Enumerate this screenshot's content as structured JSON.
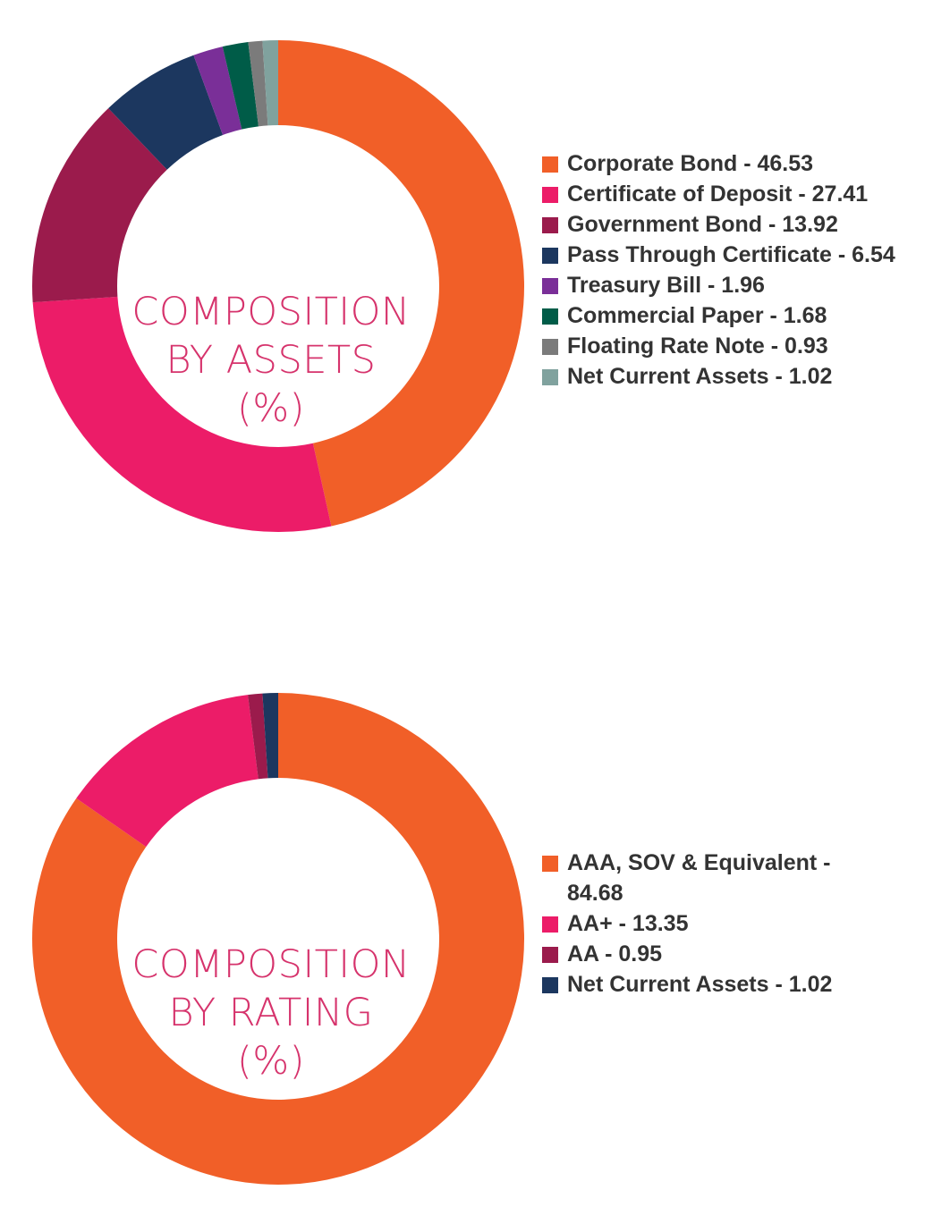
{
  "chart_data": [
    {
      "type": "pie",
      "center_label": [
        "COMPOSITION",
        "BY ASSETS",
        "(%)"
      ],
      "categories": [
        "Corporate Bond",
        "Certificate of Deposit",
        "Government Bond",
        "Pass Through Certificate",
        "Treasury Bill",
        "Commercial Paper",
        "Floating Rate Note",
        "Net Current Assets"
      ],
      "values": [
        46.53,
        27.41,
        13.92,
        6.54,
        1.96,
        1.68,
        0.93,
        1.02
      ],
      "legend_labels": [
        "Corporate Bond - 46.53",
        "Certificate of Deposit - 27.41",
        "Government Bond - 13.92",
        "Pass Through Certificate - 6.54",
        "Treasury Bill - 1.96",
        "Commercial Paper - 1.68",
        "Floating Rate Note - 0.93",
        "Net Current Assets - 1.02"
      ],
      "colors": [
        "#f15f28",
        "#ec1c68",
        "#9b1b4c",
        "#1c375f",
        "#7a2f98",
        "#005c48",
        "#7b7b7b",
        "#80a29e"
      ],
      "legend_position": "right"
    },
    {
      "type": "pie",
      "center_label": [
        "COMPOSITION",
        "BY RATING",
        "(%)"
      ],
      "categories": [
        "AAA, SOV & Equivalent",
        "AA+",
        "AA",
        "Net Current Assets"
      ],
      "values": [
        84.68,
        13.35,
        0.95,
        1.02
      ],
      "legend_labels": [
        "AAA, SOV & Equivalent - 84.68",
        "AA+ - 13.35",
        "AA - 0.95",
        "Net Current Assets - 1.02"
      ],
      "colors": [
        "#f15f28",
        "#ec1c68",
        "#9b1b4c",
        "#1c375f"
      ],
      "legend_position": "right"
    }
  ]
}
